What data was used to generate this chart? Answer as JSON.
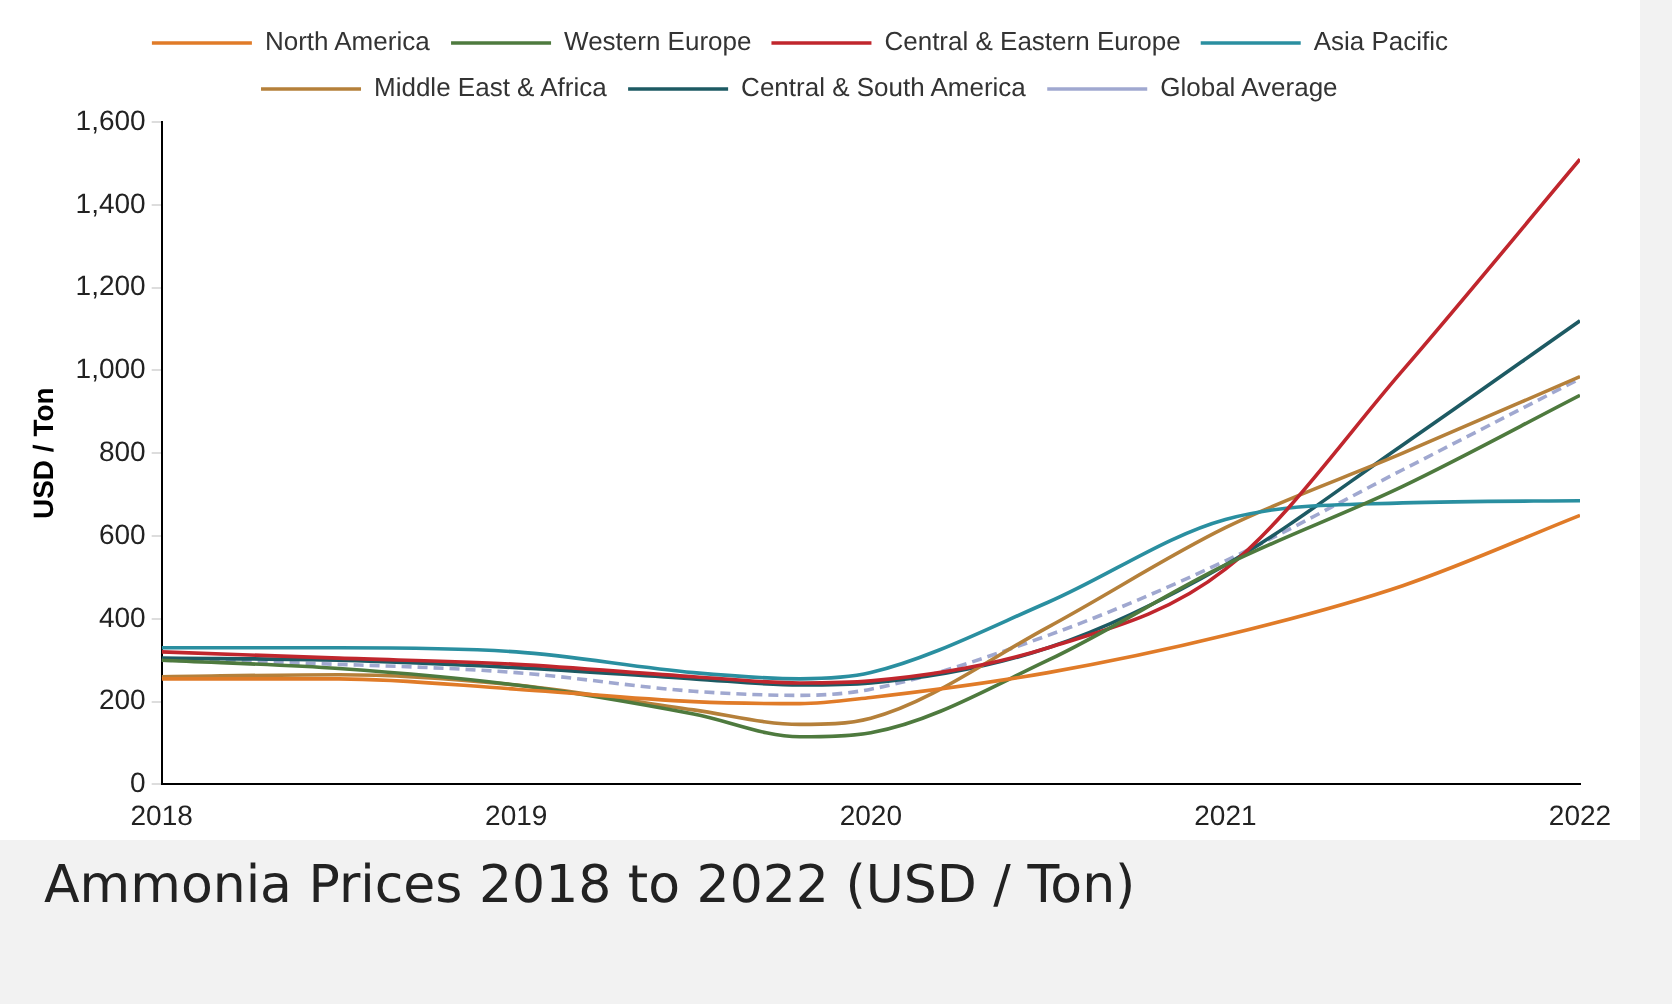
{
  "chart_data": {
    "type": "line",
    "title": "Ammonia Prices 2018 to 2022 (USD / Ton)",
    "ylabel": "USD / Ton",
    "x": [
      2018,
      2018.5,
      2019,
      2019.5,
      2019.8,
      2020,
      2020.5,
      2021,
      2021.5,
      2022
    ],
    "series": [
      {
        "name": "North America",
        "color": "#e07b28",
        "values": [
          255,
          255,
          230,
          200,
          195,
          210,
          270,
          360,
          480,
          650
        ]
      },
      {
        "name": "Western Europe",
        "color": "#4e7a3e",
        "values": [
          300,
          280,
          240,
          170,
          115,
          125,
          300,
          530,
          720,
          940
        ]
      },
      {
        "name": "Central & Eastern Europe",
        "color": "#c0262d",
        "values": [
          320,
          305,
          290,
          260,
          245,
          250,
          330,
          520,
          1000,
          1510
        ]
      },
      {
        "name": "Asia Pacific",
        "color": "#2a8fa0",
        "values": [
          330,
          330,
          320,
          270,
          255,
          270,
          440,
          640,
          680,
          685
        ]
      },
      {
        "name": "Middle East & Africa",
        "color": "#b5803a",
        "values": [
          260,
          265,
          240,
          180,
          145,
          160,
          380,
          620,
          800,
          985
        ]
      },
      {
        "name": "Central & South America",
        "color": "#1d5a63",
        "values": [
          305,
          300,
          282,
          255,
          240,
          245,
          330,
          530,
          820,
          1120
        ]
      },
      {
        "name": "Global Average",
        "color": "#a0a8d0",
        "line_style": "dashed",
        "values": [
          300,
          290,
          270,
          225,
          215,
          230,
          360,
          540,
          760,
          980
        ]
      }
    ],
    "xlim": [
      2018,
      2022
    ],
    "xticks": [
      2018,
      2019,
      2020,
      2021,
      2022
    ],
    "ylim": [
      0,
      1600
    ],
    "yticks": [
      0,
      {
        "value": 200,
        "label": "200"
      },
      {
        "value": 400,
        "label": "400"
      },
      {
        "value": 600,
        "label": "600"
      },
      {
        "value": 800,
        "label": "800"
      },
      {
        "value": 1000,
        "label": "1,000"
      },
      {
        "value": 1200,
        "label": "1,200"
      },
      {
        "value": 1400,
        "label": "1,400"
      },
      {
        "value": 1600,
        "label": "1,600"
      }
    ],
    "grid": false,
    "legend": "top",
    "marker": "none",
    "line_style": "solid"
  }
}
